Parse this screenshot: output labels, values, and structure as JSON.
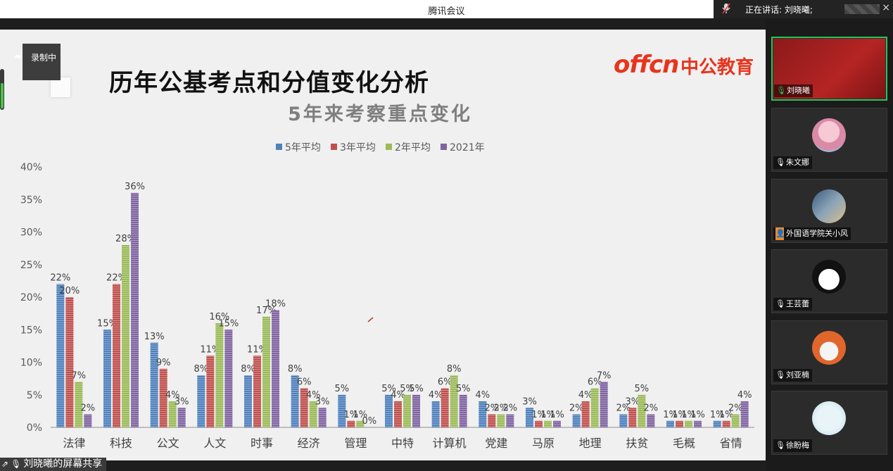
{
  "window": {
    "title": "腾讯会议"
  },
  "speaking": {
    "text": "正在讲话: 刘晓曦;"
  },
  "recording": {
    "label": "录制中"
  },
  "slide": {
    "title": "历年公基考点和分值变化分析",
    "logo_en": "offcn",
    "logo_cn": "中公教育"
  },
  "chart_data": {
    "type": "bar",
    "title": "5年来考察重点变化",
    "legend_position": "top",
    "categories": [
      "法律",
      "科技",
      "公文",
      "人文",
      "时事",
      "经济",
      "管理",
      "中特",
      "计算机",
      "党建",
      "马原",
      "地理",
      "扶贫",
      "毛概",
      "省情"
    ],
    "series": [
      {
        "name": "5年平均",
        "color": "#4f81bd",
        "values": [
          22,
          15,
          13,
          8,
          8,
          8,
          5,
          5,
          4,
          4,
          3,
          2,
          2,
          1,
          1
        ],
        "value_labels": [
          "22%",
          "15%",
          "13%",
          "8%",
          "8%",
          "8%",
          "5%",
          "5%",
          "4%",
          "4%",
          "3%",
          "2%",
          "2%",
          "1%",
          "1%"
        ]
      },
      {
        "name": "3年平均",
        "color": "#c0504d",
        "values": [
          20,
          22,
          9,
          11,
          11,
          6,
          1,
          4,
          6,
          2,
          1,
          4,
          3,
          1,
          1
        ],
        "value_labels": [
          "20%",
          "22%",
          "9%",
          "11%",
          "11%",
          "6%",
          "1%",
          "4%",
          "6%",
          "2%",
          "1%",
          "4%",
          "3%",
          "1%",
          "1%"
        ]
      },
      {
        "name": "2年平均",
        "color": "#9bbb59",
        "values": [
          7,
          28,
          4,
          16,
          17,
          4,
          1,
          5,
          8,
          2,
          1,
          6,
          5,
          1,
          2
        ],
        "value_labels": [
          "7%",
          "28%",
          "4%",
          "16%",
          "17%",
          "4%",
          "1%",
          "5%",
          "8%",
          "2%",
          "1%",
          "6%",
          "5%",
          "1%",
          "2%"
        ]
      },
      {
        "name": "2021年",
        "color": "#8064a2",
        "values": [
          2,
          36,
          3,
          15,
          18,
          3,
          0,
          5,
          5,
          2,
          1,
          7,
          2,
          1,
          4
        ],
        "value_labels": [
          "2%",
          "36%",
          "3%",
          "15%",
          "18%",
          "3%",
          "0%",
          "5%",
          "5%",
          "2%",
          "1%",
          "7%",
          "2%",
          "1%",
          "4%"
        ]
      }
    ],
    "ylim": [
      0,
      40
    ],
    "yticks": [
      "0%",
      "5%",
      "10%",
      "15%",
      "20%",
      "25%",
      "30%",
      "35%",
      "40%"
    ],
    "grid": false
  },
  "participants": [
    {
      "name": "刘晓曦",
      "active": true,
      "avatar_icon": "video-feed"
    },
    {
      "name": "朱文娜",
      "active": false,
      "avatar_icon": "anime-girl-avatar"
    },
    {
      "name": "外国语学院关小风",
      "active": false,
      "avatar_icon": "room-photo-avatar"
    },
    {
      "name": "王芸蕾",
      "active": false,
      "avatar_icon": "cartoon-face-avatar"
    },
    {
      "name": "刘亚楠",
      "active": false,
      "avatar_icon": "cat-photo-avatar"
    },
    {
      "name": "徐盼梅",
      "active": false,
      "avatar_icon": "pattern-avatar"
    }
  ],
  "share": {
    "label": "刘晓曦的屏幕共享"
  }
}
